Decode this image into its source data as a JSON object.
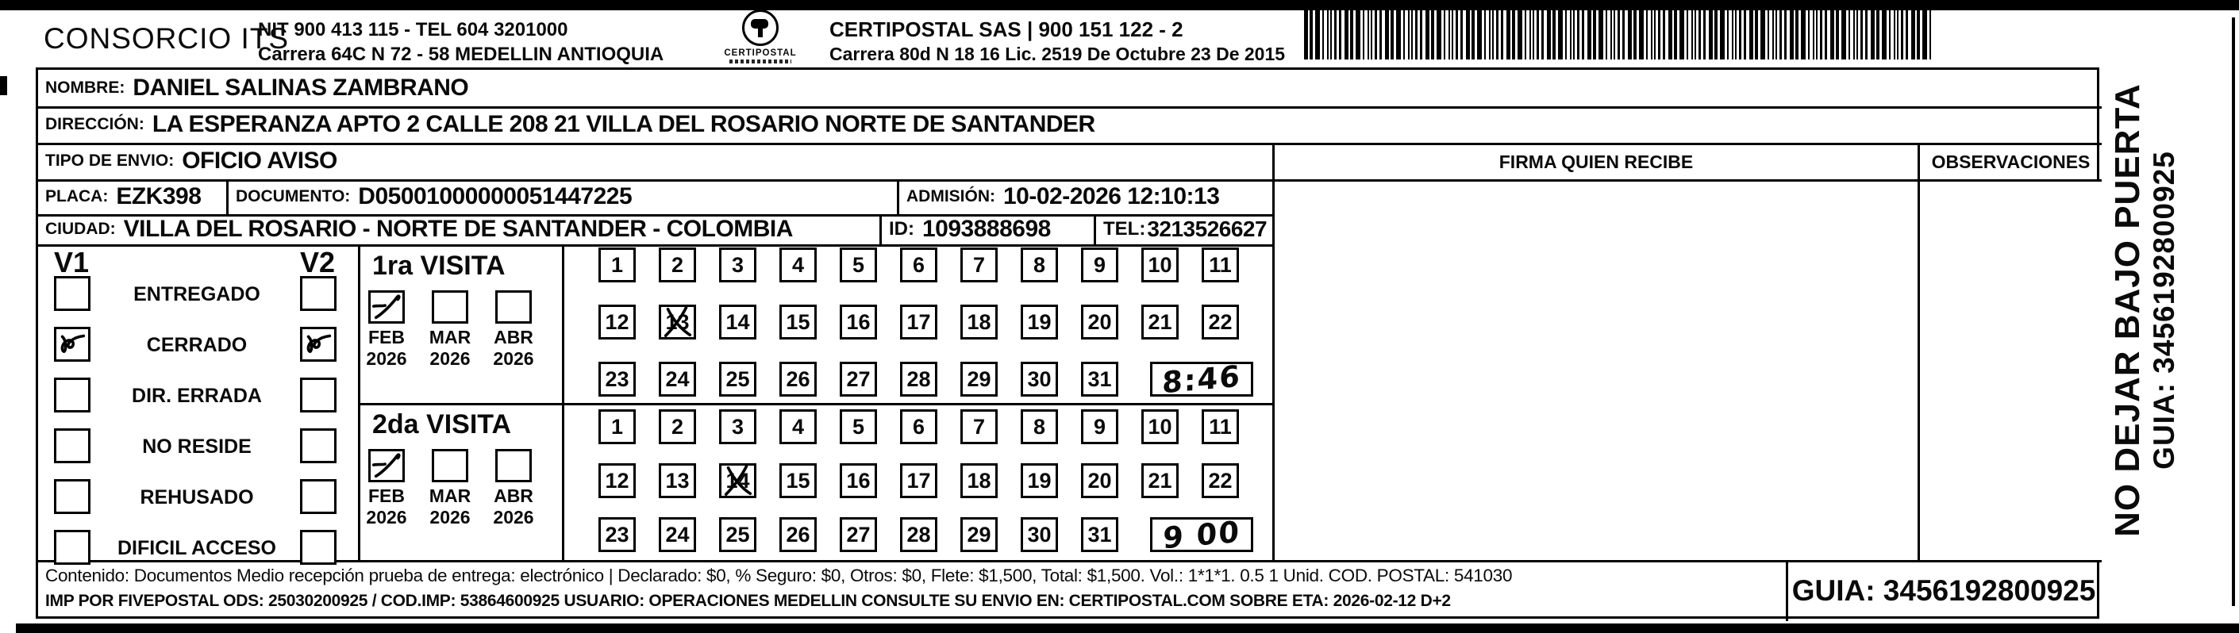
{
  "header": {
    "company": "CONSORCIO ITS",
    "nit_line": "NIT 900 413 115 - TEL 604 3201000",
    "address_line": "Carrera 64C N 72 - 58 MEDELLIN ANTIOQUIA",
    "logo_text": "CERTIPOSTAL",
    "partner_line": "CERTIPOSTAL SAS | 900 151 122 - 2",
    "partner_address": "Carrera 80d N 18 16  Lic. 2519 De Octubre 23 De 2015"
  },
  "recipient": {
    "nombre_label": "NOMBRE:",
    "nombre": "DANIEL SALINAS ZAMBRANO",
    "direccion_label": "DIRECCIÓN:",
    "direccion": "LA ESPERANZA APTO 2 CALLE 208 21 VILLA DEL ROSARIO NORTE DE SANTANDER",
    "tipo_label": "TIPO DE ENVIO:",
    "tipo": "OFICIO AVISO",
    "placa_label": "PLACA:",
    "placa": "EZK398",
    "documento_label": "DOCUMENTO:",
    "documento": "D05001000000051447225",
    "admision_label": "ADMISIÓN:",
    "admision": "10-02-2026 12:10:13",
    "ciudad_label": "CIUDAD:",
    "ciudad": "VILLA DEL ROSARIO - NORTE DE SANTANDER - COLOMBIA",
    "id_label": "ID:",
    "id": "1093888698",
    "tel_label": "TEL:",
    "tel": "3213526627"
  },
  "status": {
    "v1_header": "V1",
    "v2_header": "V2",
    "items": [
      {
        "label": "ENTREGADO",
        "v1": false,
        "v2": false
      },
      {
        "label": "CERRADO",
        "v1": true,
        "v2": true
      },
      {
        "label": "DIR. ERRADA",
        "v1": false,
        "v2": false
      },
      {
        "label": "NO RESIDE",
        "v1": false,
        "v2": false
      },
      {
        "label": "REHUSADO",
        "v1": false,
        "v2": false
      },
      {
        "label": "DIFICIL ACCESO",
        "v1": false,
        "v2": false
      }
    ]
  },
  "visits": [
    {
      "title": "1ra VISITA",
      "months": [
        {
          "label": "FEB",
          "year": "2026",
          "checked": true
        },
        {
          "label": "MAR",
          "year": "2026",
          "checked": false
        },
        {
          "label": "ABR",
          "year": "2026",
          "checked": false
        }
      ],
      "days_marked": [
        13
      ],
      "time_note": "8:46"
    },
    {
      "title": "2da VISITA",
      "months": [
        {
          "label": "FEB",
          "year": "2026",
          "checked": true
        },
        {
          "label": "MAR",
          "year": "2026",
          "checked": false
        },
        {
          "label": "ABR",
          "year": "2026",
          "checked": false
        }
      ],
      "days_marked": [
        14
      ],
      "time_note": "9 00"
    }
  ],
  "signature": {
    "firma_header": "FIRMA QUIEN RECIBE",
    "observaciones_header": "OBSERVACIONES"
  },
  "side_note": {
    "line1": "NO DEJAR BAJO PUERTA",
    "line2": "GUIA: 3456192800925"
  },
  "footer": {
    "line1": "Contenido: Documentos Medio recepción prueba de entrega: electrónico | Declarado: $0, % Seguro: $0, Otros: $0, Flete: $1,500, Total: $1,500. Vol.: 1*1*1. 0.5  1 Unid. COD. POSTAL: 541030",
    "line2": "IMP POR FIVEPOSTAL ODS: 25030200925 / COD.IMP: 53864600925 USUARIO: OPERACIONES MEDELLIN CONSULTE SU ENVIO EN: CERTIPOSTAL.COM SOBRE ETA: 2026-02-12 D+2",
    "guia": "GUIA: 3456192800925"
  }
}
